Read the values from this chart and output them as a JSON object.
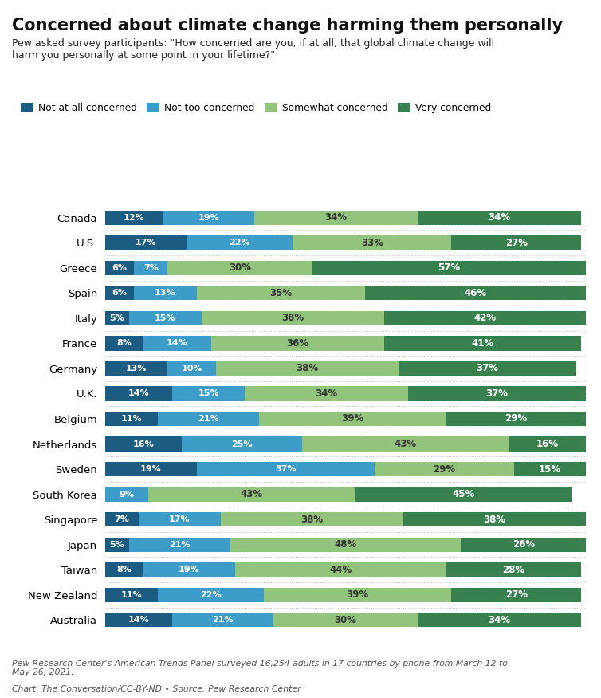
{
  "title": "Concerned about climate change harming them personally",
  "subtitle": "Pew asked survey participants: \"How concerned are you, if at all, that global climate change will\nharm you personally at some point in your lifetime?\"",
  "categories": [
    "Canada",
    "U.S.",
    "Greece",
    "Spain",
    "Italy",
    "France",
    "Germany",
    "U.K.",
    "Belgium",
    "Netherlands",
    "Sweden",
    "South Korea",
    "Singapore",
    "Japan",
    "Taiwan",
    "New Zealand",
    "Australia"
  ],
  "not_at_all": [
    12,
    17,
    6,
    6,
    5,
    8,
    13,
    14,
    11,
    16,
    19,
    0,
    7,
    5,
    8,
    11,
    14
  ],
  "not_too": [
    19,
    22,
    7,
    13,
    15,
    14,
    10,
    15,
    21,
    25,
    37,
    9,
    17,
    21,
    19,
    22,
    21
  ],
  "somewhat": [
    34,
    33,
    30,
    35,
    38,
    36,
    38,
    34,
    39,
    43,
    29,
    43,
    38,
    48,
    44,
    39,
    30
  ],
  "very": [
    34,
    27,
    57,
    46,
    42,
    41,
    37,
    37,
    29,
    16,
    15,
    45,
    38,
    26,
    28,
    27,
    34
  ],
  "colors": {
    "not_at_all": "#1c5c82",
    "not_too": "#3d9dc8",
    "somewhat": "#93c47d",
    "very": "#38814e"
  },
  "legend_labels": [
    "Not at all concerned",
    "Not too concerned",
    "Somewhat concerned",
    "Very concerned"
  ],
  "footer1": "Pew Research Center's American Trends Panel surveyed 16,254 adults in 17 countries by phone from March 12 to\nMay 26, 2021.",
  "footer2": "Chart: The Conversation/CC-BY-ND • Source: Pew Research Center"
}
